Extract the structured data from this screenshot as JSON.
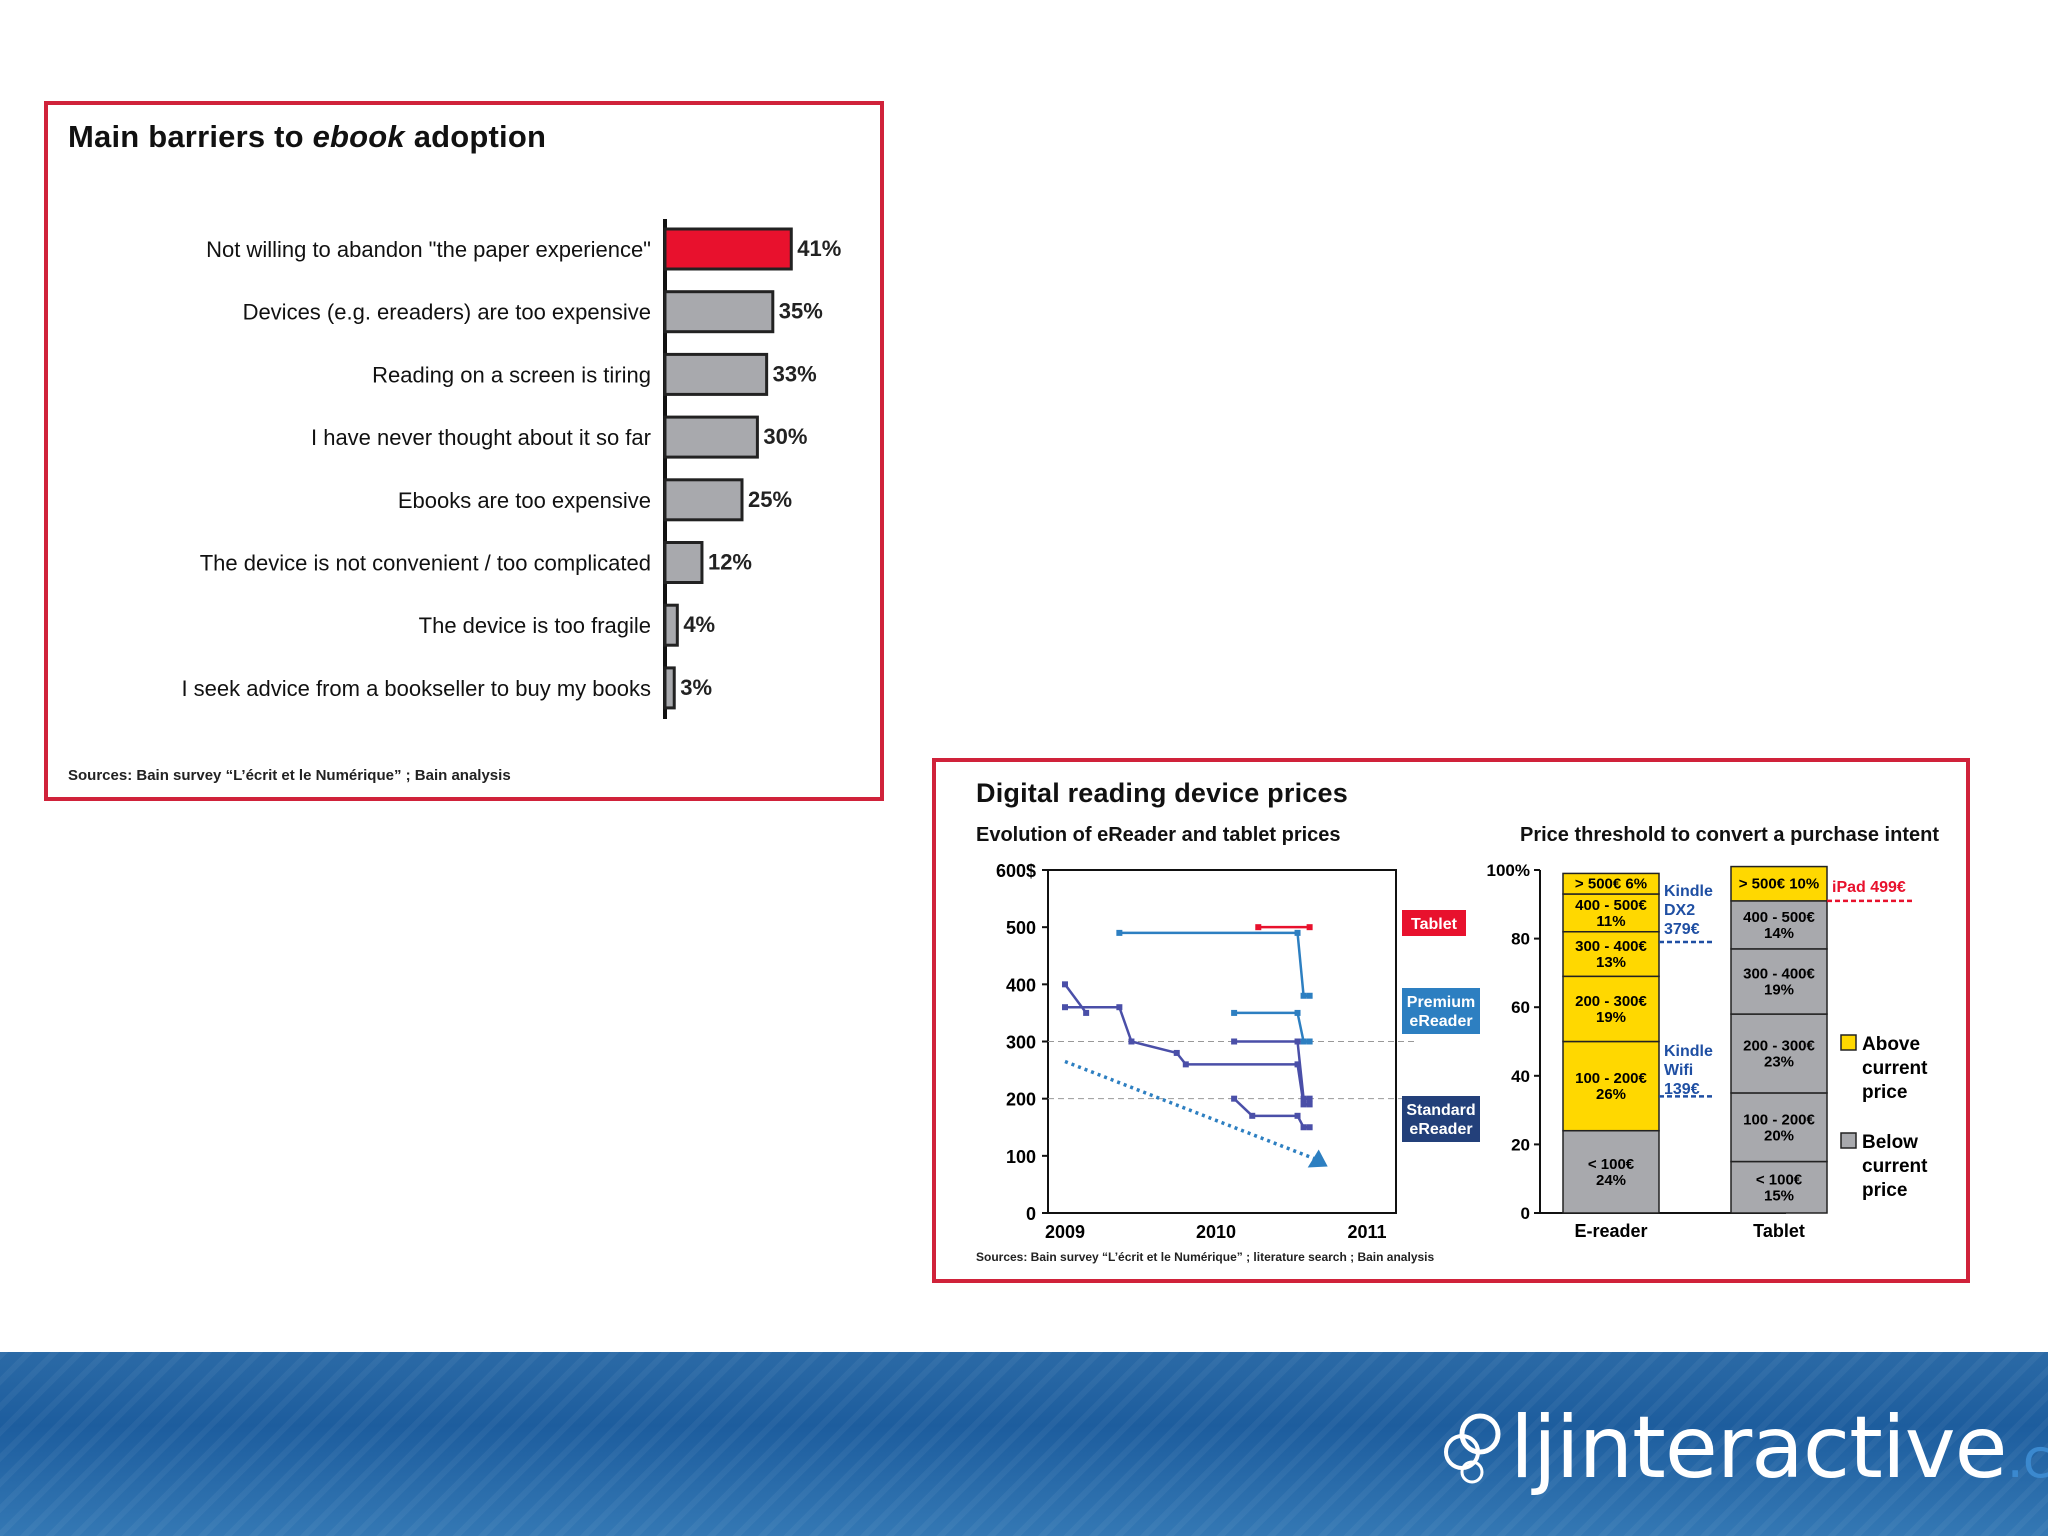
{
  "barriers": {
    "title_prefix": "Main barriers to ",
    "title_em": "ebook",
    "title_suffix": " adoption",
    "source": "Sources: Bain survey “L’écrit et le Numérique” ; Bain analysis",
    "colors": {
      "highlight": "#e8112d",
      "bar": "#a8a9ad",
      "border": "#d0223a"
    }
  },
  "prices": {
    "title": "Digital reading device prices",
    "source": "Sources: Bain survey “L’écrit et le Numérique” ; literature search ; Bain analysis",
    "left_subtitle": "Evolution of eReader and tablet prices",
    "right_subtitle": "Price threshold to convert a purchase intent",
    "labels": {
      "tablet": "Tablet",
      "premium": [
        "Premium",
        "eReader"
      ],
      "standard": [
        "Standard",
        "eReader"
      ],
      "kindle_dx": [
        "Kindle",
        "DX2",
        "379€"
      ],
      "kindle_wifi": [
        "Kindle",
        "Wifi",
        "139€"
      ],
      "ipad": "iPad 499€",
      "above": [
        "Above",
        "current",
        "price"
      ],
      "below": [
        "Below",
        "current",
        "price"
      ]
    },
    "colors": {
      "tablet": "#e8112d",
      "premium": "#2d7fc1",
      "standard": "#23407a",
      "yellow": "#ffd800",
      "grey": "#a8a9ad"
    }
  },
  "footer": {
    "logo_main": "ljinteractive",
    "logo_suffix": ".com"
  },
  "chart_data": [
    {
      "type": "bar",
      "orientation": "horizontal",
      "title": "Main barriers to ebook adoption",
      "categories": [
        "Not willing to abandon \"the paper experience\"",
        "Devices (e.g. ereaders) are too expensive",
        "Reading on a screen is tiring",
        "I have never thought about it so far",
        "Ebooks are too expensive",
        "The device is not convenient / too complicated",
        "The device is too fragile",
        "I seek advice from a bookseller to buy my books"
      ],
      "values": [
        41,
        35,
        33,
        30,
        25,
        12,
        4,
        3
      ],
      "value_labels": [
        "41%",
        "35%",
        "33%",
        "30%",
        "25%",
        "12%",
        "4%",
        "3%"
      ],
      "highlight_index": 0
    },
    {
      "type": "line",
      "title": "Evolution of eReader and tablet prices",
      "x_ticks": [
        "2009",
        "2010",
        "2011"
      ],
      "y_ticks": [
        "0",
        "100",
        "200",
        "300",
        "400",
        "500",
        "600$"
      ],
      "xlim": [
        2009,
        2011.1
      ],
      "ylim": [
        0,
        600
      ],
      "series": [
        {
          "name": "Tablet",
          "points": [
            [
              2010.28,
              500
            ],
            [
              2010.62,
              500
            ]
          ]
        },
        {
          "name": "Premium eReader",
          "points": [
            [
              2009.36,
              490
            ],
            [
              2010.54,
              490
            ],
            [
              2010.58,
              380
            ],
            [
              2010.62,
              380
            ]
          ]
        },
        {
          "name": "Premium eReader",
          "points": [
            [
              2010.12,
              350
            ],
            [
              2010.54,
              350
            ],
            [
              2010.58,
              300
            ],
            [
              2010.62,
              300
            ]
          ]
        },
        {
          "name": "Standard eReader",
          "points": [
            [
              2009.0,
              400
            ],
            [
              2009.14,
              350
            ]
          ]
        },
        {
          "name": "Standard eReader",
          "points": [
            [
              2009.0,
              360
            ],
            [
              2009.36,
              360
            ],
            [
              2009.44,
              300
            ],
            [
              2009.74,
              280
            ],
            [
              2009.8,
              260
            ],
            [
              2010.54,
              260
            ],
            [
              2010.58,
              190
            ],
            [
              2010.62,
              190
            ]
          ]
        },
        {
          "name": "Standard eReader",
          "points": [
            [
              2010.12,
              300
            ],
            [
              2010.54,
              300
            ],
            [
              2010.58,
              200
            ],
            [
              2010.62,
              200
            ]
          ]
        },
        {
          "name": "Standard eReader",
          "points": [
            [
              2010.12,
              200
            ],
            [
              2010.24,
              170
            ],
            [
              2010.54,
              170
            ],
            [
              2010.58,
              150
            ],
            [
              2010.62,
              150
            ]
          ]
        }
      ],
      "trend": {
        "start": [
          2009.0,
          265
        ],
        "end": [
          2010.7,
          90
        ]
      },
      "reference_lines": [
        300,
        200
      ]
    },
    {
      "type": "bar",
      "stacked": true,
      "title": "Price threshold to convert a purchase intent",
      "categories": [
        "E-reader",
        "Tablet"
      ],
      "y_ticks": [
        "0",
        "20",
        "40",
        "60",
        "80",
        "100%"
      ],
      "ylim": [
        0,
        100
      ],
      "series": [
        {
          "name": "< 100€",
          "values": [
            24,
            15
          ],
          "group": "Below current price"
        },
        {
          "name": "100 - 200€",
          "values": [
            26,
            20
          ],
          "group": [
            "Above current price",
            "Below current price"
          ]
        },
        {
          "name": "200 - 300€",
          "values": [
            19,
            23
          ],
          "group": [
            "Above current price",
            "Below current price"
          ]
        },
        {
          "name": "300 - 400€",
          "values": [
            13,
            19
          ],
          "group": [
            "Above current price",
            "Below current price"
          ]
        },
        {
          "name": "400 - 500€",
          "values": [
            11,
            14
          ],
          "group": [
            "Above current price",
            "Below current price"
          ]
        },
        {
          "name": "> 500€",
          "values": [
            6,
            10
          ],
          "group": "Above current price"
        }
      ],
      "segment_labels": {
        "E-reader": [
          [
            "< 100€",
            "24%"
          ],
          [
            "100 - 200€",
            "26%"
          ],
          [
            "200 - 300€",
            "19%"
          ],
          [
            "300 - 400€",
            "13%"
          ],
          [
            "400 - 500€",
            "11%"
          ],
          [
            "> 500€ 6%"
          ]
        ],
        "Tablet": [
          [
            "< 100€",
            "15%"
          ],
          [
            "100 - 200€",
            "20%"
          ],
          [
            "200 - 300€",
            "23%"
          ],
          [
            "300 - 400€",
            "19%"
          ],
          [
            "400 - 500€",
            "14%"
          ],
          [
            "> 500€ 10%"
          ]
        ]
      },
      "reference_markers": [
        {
          "label": "Kindle DX2 379€",
          "value": 79,
          "bar": "E-reader"
        },
        {
          "label": "Kindle Wifi 139€",
          "value": 34,
          "bar": "E-reader"
        },
        {
          "label": "iPad 499€",
          "value": 91,
          "bar": "Tablet"
        }
      ],
      "legend": [
        "Above current price",
        "Below current price"
      ]
    }
  ]
}
